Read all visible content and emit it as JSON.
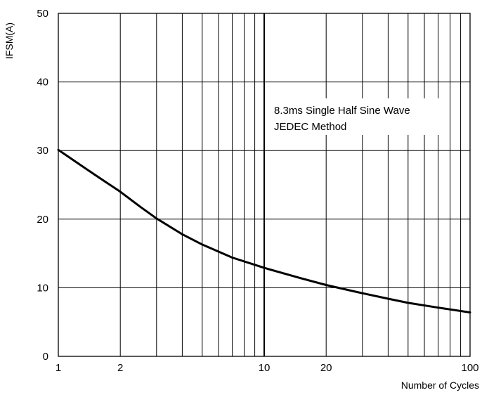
{
  "chart_data": {
    "type": "line",
    "title": "",
    "xlabel": "Number of Cycles",
    "ylabel": "IFSM(A)",
    "x_scale": "log",
    "xlim": [
      1,
      100
    ],
    "ylim": [
      0,
      50
    ],
    "x_ticks": [
      1,
      2,
      10,
      20,
      100
    ],
    "y_ticks": [
      0,
      10,
      20,
      30,
      40,
      50
    ],
    "grid": true,
    "annotation": [
      "8.3ms Single Half Sine Wave",
      "JEDEC Method"
    ],
    "series": [
      {
        "x": [
          1,
          1.5,
          2,
          2.5,
          3,
          4,
          5,
          7,
          10,
          15,
          20,
          30,
          40,
          50,
          70,
          100
        ],
        "y": [
          30.1,
          26.5,
          24.0,
          21.8,
          20.1,
          17.8,
          16.3,
          14.4,
          12.9,
          11.4,
          10.4,
          9.2,
          8.4,
          7.8,
          7.1,
          6.4
        ]
      }
    ]
  }
}
